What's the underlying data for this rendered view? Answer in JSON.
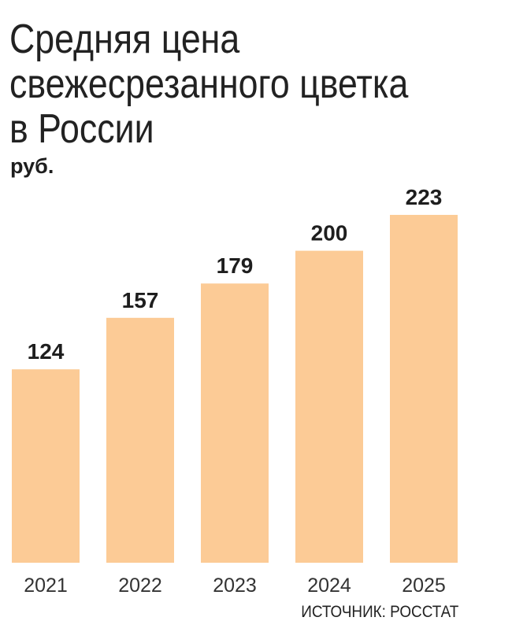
{
  "chart_data": {
    "type": "bar",
    "title": [
      "Средняя цена",
      "свежесрезанного цветка",
      "в России"
    ],
    "unit": "руб.",
    "categories": [
      "2021",
      "2022",
      "2023",
      "2024",
      "2025"
    ],
    "values": [
      124,
      157,
      179,
      200,
      223
    ],
    "data_labels": [
      "124",
      "157",
      "179",
      "200",
      "223"
    ],
    "ylim": [
      0,
      223
    ],
    "grid": false,
    "y_axis_shown": false,
    "bar_color": "#FCCB96",
    "source": "ИСТОЧНИК: РОССТАТ"
  }
}
